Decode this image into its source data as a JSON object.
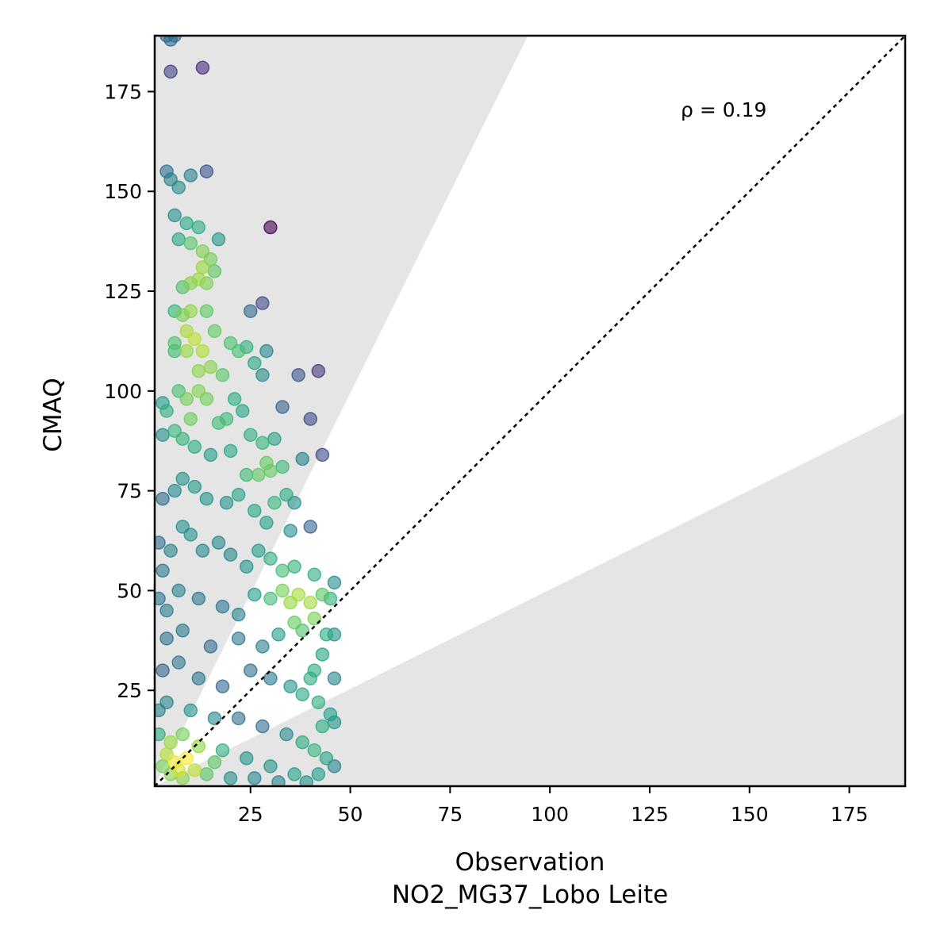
{
  "chart_data": {
    "type": "scatter",
    "title": "",
    "xlabel": "Observation",
    "xlabel_sub": "NO2_MG37_Lobo Leite",
    "ylabel": "CMAQ",
    "xlim": [
      1,
      189
    ],
    "ylim": [
      1,
      189
    ],
    "xticks": [
      25,
      50,
      75,
      100,
      125,
      150,
      175
    ],
    "yticks": [
      25,
      50,
      75,
      100,
      125,
      150,
      175
    ],
    "annotation": {
      "text": "ρ = 0.19",
      "x": 132,
      "y": 168
    },
    "reference_line": {
      "style": "dotted",
      "slope": 1,
      "color": "#000000"
    },
    "factor_of_2_band": {
      "color": "#e5e5e5",
      "upper_slope": 2,
      "lower_slope": 0.5
    },
    "colormap": "viridis",
    "colors": {
      "low_density": "#440154",
      "high_density": "#fde725",
      "band": "#e5e5e5"
    },
    "points_sample": [
      [
        4,
        189
      ],
      [
        5,
        188
      ],
      [
        6,
        189
      ],
      [
        5,
        180
      ],
      [
        13,
        181
      ],
      [
        4,
        155
      ],
      [
        5,
        153
      ],
      [
        7,
        151
      ],
      [
        10,
        154
      ],
      [
        14,
        155
      ],
      [
        30,
        141
      ],
      [
        6,
        144
      ],
      [
        7,
        138
      ],
      [
        9,
        142
      ],
      [
        12,
        141
      ],
      [
        17,
        138
      ],
      [
        10,
        137
      ],
      [
        13,
        135
      ],
      [
        15,
        133
      ],
      [
        16,
        130
      ],
      [
        13,
        131
      ],
      [
        8,
        126
      ],
      [
        10,
        127
      ],
      [
        12,
        128
      ],
      [
        14,
        127
      ],
      [
        25,
        120
      ],
      [
        28,
        122
      ],
      [
        6,
        120
      ],
      [
        8,
        119
      ],
      [
        10,
        120
      ],
      [
        14,
        120
      ],
      [
        6,
        112
      ],
      [
        9,
        115
      ],
      [
        11,
        113
      ],
      [
        13,
        110
      ],
      [
        16,
        115
      ],
      [
        6,
        110
      ],
      [
        9,
        110
      ],
      [
        12,
        105
      ],
      [
        15,
        106
      ],
      [
        18,
        104
      ],
      [
        20,
        112
      ],
      [
        22,
        110
      ],
      [
        24,
        111
      ],
      [
        26,
        107
      ],
      [
        28,
        104
      ],
      [
        29,
        110
      ],
      [
        37,
        104
      ],
      [
        42,
        105
      ],
      [
        40,
        93
      ],
      [
        33,
        96
      ],
      [
        3,
        97
      ],
      [
        4,
        95
      ],
      [
        7,
        100
      ],
      [
        9,
        98
      ],
      [
        10,
        93
      ],
      [
        12,
        100
      ],
      [
        14,
        98
      ],
      [
        17,
        92
      ],
      [
        19,
        93
      ],
      [
        21,
        98
      ],
      [
        23,
        95
      ],
      [
        25,
        89
      ],
      [
        28,
        87
      ],
      [
        31,
        88
      ],
      [
        3,
        89
      ],
      [
        6,
        90
      ],
      [
        8,
        88
      ],
      [
        11,
        86
      ],
      [
        15,
        84
      ],
      [
        20,
        85
      ],
      [
        24,
        79
      ],
      [
        27,
        79
      ],
      [
        29,
        82
      ],
      [
        30,
        80
      ],
      [
        33,
        81
      ],
      [
        38,
        83
      ],
      [
        43,
        84
      ],
      [
        3,
        73
      ],
      [
        6,
        75
      ],
      [
        8,
        78
      ],
      [
        11,
        76
      ],
      [
        14,
        73
      ],
      [
        19,
        72
      ],
      [
        22,
        74
      ],
      [
        26,
        70
      ],
      [
        29,
        67
      ],
      [
        31,
        72
      ],
      [
        34,
        74
      ],
      [
        36,
        72
      ],
      [
        40,
        66
      ],
      [
        35,
        65
      ],
      [
        2,
        62
      ],
      [
        3,
        55
      ],
      [
        5,
        60
      ],
      [
        8,
        66
      ],
      [
        10,
        64
      ],
      [
        13,
        60
      ],
      [
        17,
        62
      ],
      [
        20,
        59
      ],
      [
        24,
        56
      ],
      [
        27,
        60
      ],
      [
        30,
        58
      ],
      [
        33,
        55
      ],
      [
        36,
        56
      ],
      [
        41,
        54
      ],
      [
        46,
        52
      ],
      [
        2,
        48
      ],
      [
        4,
        45
      ],
      [
        7,
        50
      ],
      [
        12,
        48
      ],
      [
        18,
        46
      ],
      [
        22,
        44
      ],
      [
        26,
        49
      ],
      [
        30,
        48
      ],
      [
        33,
        50
      ],
      [
        35,
        47
      ],
      [
        37,
        49
      ],
      [
        40,
        47
      ],
      [
        43,
        49
      ],
      [
        45,
        48
      ],
      [
        4,
        38
      ],
      [
        8,
        40
      ],
      [
        15,
        36
      ],
      [
        22,
        38
      ],
      [
        28,
        36
      ],
      [
        32,
        39
      ],
      [
        36,
        42
      ],
      [
        38,
        40
      ],
      [
        41,
        43
      ],
      [
        44,
        39
      ],
      [
        46,
        39
      ],
      [
        43,
        34
      ],
      [
        46,
        28
      ],
      [
        41,
        30
      ],
      [
        3,
        30
      ],
      [
        7,
        32
      ],
      [
        12,
        28
      ],
      [
        18,
        26
      ],
      [
        25,
        30
      ],
      [
        30,
        28
      ],
      [
        35,
        26
      ],
      [
        38,
        24
      ],
      [
        40,
        28
      ],
      [
        42,
        22
      ],
      [
        45,
        19
      ],
      [
        46,
        17
      ],
      [
        43,
        16
      ],
      [
        2,
        20
      ],
      [
        4,
        22
      ],
      [
        10,
        20
      ],
      [
        16,
        18
      ],
      [
        22,
        18
      ],
      [
        28,
        16
      ],
      [
        34,
        14
      ],
      [
        38,
        12
      ],
      [
        41,
        10
      ],
      [
        44,
        8
      ],
      [
        46,
        6
      ],
      [
        42,
        4
      ],
      [
        39,
        2
      ],
      [
        2,
        14
      ],
      [
        5,
        12
      ],
      [
        8,
        14
      ],
      [
        12,
        11
      ],
      [
        18,
        10
      ],
      [
        24,
        8
      ],
      [
        30,
        6
      ],
      [
        36,
        4
      ],
      [
        3,
        6
      ],
      [
        4,
        9
      ],
      [
        6,
        7
      ],
      [
        7,
        5
      ],
      [
        9,
        8
      ],
      [
        5,
        4
      ],
      [
        8,
        3
      ],
      [
        11,
        5
      ],
      [
        14,
        4
      ],
      [
        16,
        7
      ],
      [
        20,
        3
      ],
      [
        26,
        3
      ],
      [
        32,
        2
      ]
    ]
  }
}
